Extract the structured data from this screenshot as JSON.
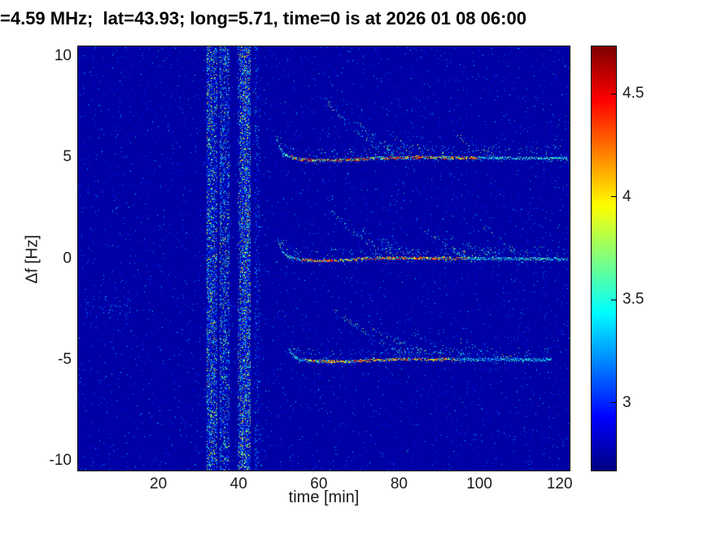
{
  "figure": {
    "title": "=4.59 MHz;  lat=43.93; long=5.71, time=0 is at 2026 01 08 06:00"
  },
  "chart_data": {
    "type": "heatmap",
    "title": "=4.59 MHz;  lat=43.93; long=5.71, time=0 is at 2026 01 08 06:00",
    "xlabel": "time [min]",
    "ylabel": "Δf [Hz]",
    "xlim": [
      0,
      122.5
    ],
    "ylim": [
      -10.5,
      10.5
    ],
    "xticks": [
      20,
      40,
      60,
      80,
      100,
      120
    ],
    "yticks": [
      -10,
      -5,
      0,
      5,
      10
    ],
    "colormap": "jet",
    "value_range": [
      2.67,
      4.73
    ],
    "colorbar_ticks": [
      3,
      3.5,
      4,
      4.5
    ],
    "background_value": 2.73,
    "noise": {
      "base_variation": 0.06,
      "speckle_probability": 0.018,
      "speckle_extra_value": 0.6
    },
    "vertical_noise_bands": [
      {
        "x_center": 33.3,
        "width": 2.3,
        "density": 0.42,
        "max_value": 4.1
      },
      {
        "x_center": 36.4,
        "width": 2.0,
        "density": 0.36,
        "max_value": 4.0
      },
      {
        "x_center": 41.3,
        "width": 2.7,
        "density": 0.46,
        "max_value": 4.2
      },
      {
        "x_center": 44.6,
        "width": 1.0,
        "density": 0.14,
        "max_value": 3.6
      }
    ],
    "traces": [
      {
        "y_nominal": 5,
        "path": [
          [
            49.3,
            6.0
          ],
          [
            50.2,
            5.5
          ],
          [
            51.5,
            5.15
          ],
          [
            54,
            4.95
          ],
          [
            58,
            4.86
          ],
          [
            64,
            4.85
          ],
          [
            70,
            4.9
          ],
          [
            76,
            4.98
          ],
          [
            85,
            5.0
          ],
          [
            100,
            4.97
          ],
          [
            122,
            4.95
          ]
        ],
        "bright_x_range": [
          53,
          100
        ],
        "hot_value": [
          3.85,
          4.7
        ],
        "cool_value": [
          3.05,
          3.8
        ]
      },
      {
        "y_nominal": 0,
        "path": [
          [
            49.8,
            0.9
          ],
          [
            50.6,
            0.45
          ],
          [
            52,
            0.1
          ],
          [
            55,
            -0.05
          ],
          [
            60,
            -0.12
          ],
          [
            66,
            -0.1
          ],
          [
            72,
            0.0
          ],
          [
            80,
            0.02
          ],
          [
            95,
            0.0
          ],
          [
            122,
            -0.02
          ]
        ],
        "bright_x_range": [
          54,
          97
        ],
        "hot_value": [
          3.8,
          4.6
        ],
        "cool_value": [
          3.0,
          3.8
        ]
      },
      {
        "y_nominal": -5,
        "path": [
          [
            52.5,
            -4.45
          ],
          [
            53.5,
            -4.8
          ],
          [
            55,
            -5.0
          ],
          [
            60,
            -5.1
          ],
          [
            66,
            -5.12
          ],
          [
            72,
            -5.05
          ],
          [
            80,
            -5.0
          ],
          [
            95,
            -5.0
          ],
          [
            118,
            -5.02
          ]
        ],
        "bright_x_range": [
          56,
          95
        ],
        "hot_value": [
          3.8,
          4.55
        ],
        "cool_value": [
          3.0,
          3.7
        ]
      }
    ],
    "wisps": [
      {
        "from": [
          61.5,
          7.9
        ],
        "to": [
          79,
          5.25
        ],
        "density": 0.55
      },
      {
        "from": [
          69,
          6.7
        ],
        "to": [
          84,
          5.2
        ],
        "density": 0.45
      },
      {
        "from": [
          77,
          6.1
        ],
        "to": [
          93,
          5.15
        ],
        "density": 0.38
      },
      {
        "from": [
          93,
          6.4
        ],
        "to": [
          104,
          5.1
        ],
        "density": 0.28
      },
      {
        "from": [
          63,
          2.3
        ],
        "to": [
          80,
          0.25
        ],
        "density": 0.55
      },
      {
        "from": [
          70,
          1.6
        ],
        "to": [
          86,
          0.2
        ],
        "density": 0.45
      },
      {
        "from": [
          84,
          1.9
        ],
        "to": [
          98,
          0.15
        ],
        "density": 0.5
      },
      {
        "from": [
          92,
          1.3
        ],
        "to": [
          106,
          0.15
        ],
        "density": 0.38
      },
      {
        "from": [
          99,
          2.1
        ],
        "to": [
          112,
          0.2
        ],
        "density": 0.28
      },
      {
        "from": [
          64,
          -2.6
        ],
        "to": [
          86,
          -4.8
        ],
        "density": 0.5
      },
      {
        "from": [
          72,
          -3.2
        ],
        "to": [
          92,
          -4.85
        ],
        "density": 0.42
      },
      {
        "from": [
          83,
          -3.6
        ],
        "to": [
          100,
          -4.9
        ],
        "density": 0.32
      },
      {
        "from": [
          95,
          -4.0
        ],
        "to": [
          108,
          -4.95
        ],
        "density": 0.25
      }
    ],
    "patches": [
      {
        "x_range": [
          2,
          13
        ],
        "y_range": [
          -2.9,
          -1.9
        ],
        "density": 0.055,
        "value_range": [
          2.88,
          3.45
        ]
      }
    ]
  }
}
